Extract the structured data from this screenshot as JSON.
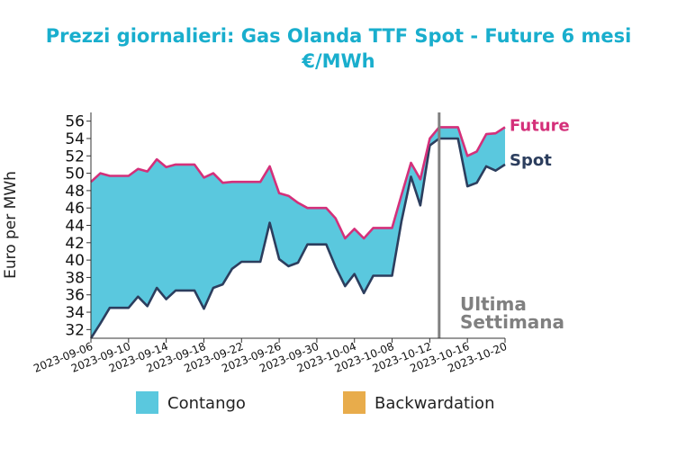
{
  "chart_data": {
    "type": "area",
    "title": "Prezzi giornalieri: Gas Olanda TTF Spot - Future 6 mesi",
    "subtitle": "€/MWh",
    "ylabel": "Euro per MWh",
    "xlabel": "",
    "ylim": [
      31,
      57
    ],
    "yticks": [
      32,
      34,
      36,
      38,
      40,
      42,
      44,
      46,
      48,
      50,
      52,
      54,
      56
    ],
    "xlim": [
      "2023-09-06",
      "2023-10-20"
    ],
    "xticks": [
      "2023-09-06",
      "2023-09-10",
      "2023-09-14",
      "2023-09-18",
      "2023-09-22",
      "2023-09-26",
      "2023-09-30",
      "2023-10-04",
      "2023-10-08",
      "2023-10-12",
      "2023-10-16",
      "2023-10-20"
    ],
    "dates": [
      "2023-09-06",
      "2023-09-07",
      "2023-09-08",
      "2023-09-09",
      "2023-09-10",
      "2023-09-11",
      "2023-09-12",
      "2023-09-13",
      "2023-09-14",
      "2023-09-15",
      "2023-09-16",
      "2023-09-17",
      "2023-09-18",
      "2023-09-19",
      "2023-09-20",
      "2023-09-21",
      "2023-09-22",
      "2023-09-23",
      "2023-09-24",
      "2023-09-25",
      "2023-09-26",
      "2023-09-27",
      "2023-09-28",
      "2023-09-29",
      "2023-09-30",
      "2023-10-01",
      "2023-10-02",
      "2023-10-03",
      "2023-10-04",
      "2023-10-05",
      "2023-10-06",
      "2023-10-07",
      "2023-10-08",
      "2023-10-09",
      "2023-10-10",
      "2023-10-11",
      "2023-10-12",
      "2023-10-13",
      "2023-10-14",
      "2023-10-15",
      "2023-10-16",
      "2023-10-17",
      "2023-10-18",
      "2023-10-19",
      "2023-10-20"
    ],
    "series": [
      {
        "name": "Future",
        "color": "#d4307a",
        "values": [
          49.0,
          50.0,
          49.7,
          49.7,
          49.7,
          50.5,
          50.2,
          51.6,
          50.7,
          51.0,
          51.0,
          51.0,
          49.5,
          50.0,
          48.9,
          49.0,
          49.0,
          49.0,
          49.0,
          50.8,
          47.7,
          47.4,
          46.6,
          46.0,
          46.0,
          46.0,
          44.8,
          42.5,
          43.6,
          42.5,
          43.7,
          43.7,
          43.7,
          47.5,
          51.2,
          49.3,
          54.0,
          55.3,
          55.3,
          55.3,
          52.0,
          52.5,
          54.5,
          54.6,
          55.3
        ]
      },
      {
        "name": "Spot",
        "color": "#2c3e5e",
        "values": [
          31.0,
          32.7,
          34.5,
          34.5,
          34.5,
          35.8,
          34.7,
          36.8,
          35.5,
          36.5,
          36.5,
          36.5,
          34.4,
          36.8,
          37.2,
          39.0,
          39.8,
          39.8,
          39.8,
          44.3,
          40.1,
          39.3,
          39.7,
          41.8,
          41.8,
          41.8,
          39.2,
          37.0,
          38.4,
          36.2,
          38.2,
          38.2,
          38.2,
          44.5,
          49.6,
          46.3,
          53.2,
          54.0,
          54.0,
          54.0,
          48.5,
          48.9,
          50.8,
          50.3,
          51.0
        ]
      }
    ],
    "fill_legend": [
      {
        "label": "Contango",
        "color": "#5ac8de"
      },
      {
        "label": "Backwardation",
        "color": "#e8ac4b"
      }
    ],
    "marker": {
      "date": "2023-10-13",
      "label_line1": "Ultima",
      "label_line2": "Settimana",
      "color": "#808080"
    },
    "grid": false,
    "legend_position": "bottom"
  }
}
